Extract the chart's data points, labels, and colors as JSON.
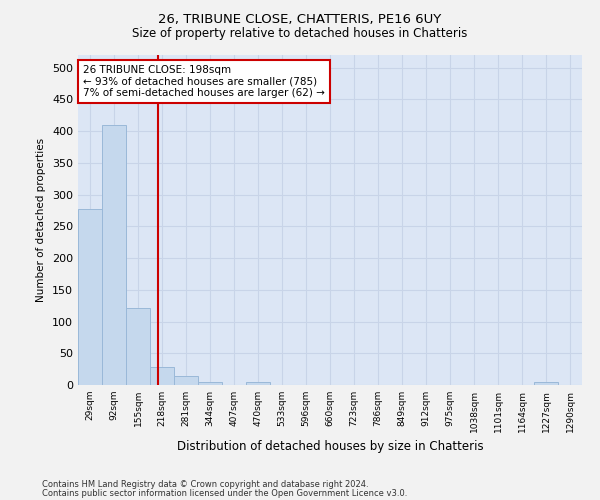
{
  "title1": "26, TRIBUNE CLOSE, CHATTERIS, PE16 6UY",
  "title2": "Size of property relative to detached houses in Chatteris",
  "xlabel": "Distribution of detached houses by size in Chatteris",
  "ylabel": "Number of detached properties",
  "categories": [
    "29sqm",
    "92sqm",
    "155sqm",
    "218sqm",
    "281sqm",
    "344sqm",
    "407sqm",
    "470sqm",
    "533sqm",
    "596sqm",
    "660sqm",
    "723sqm",
    "786sqm",
    "849sqm",
    "912sqm",
    "975sqm",
    "1038sqm",
    "1101sqm",
    "1164sqm",
    "1227sqm",
    "1290sqm"
  ],
  "values": [
    277,
    410,
    122,
    29,
    14,
    5,
    0,
    5,
    0,
    0,
    0,
    0,
    0,
    0,
    0,
    0,
    0,
    0,
    0,
    5,
    0
  ],
  "bar_color": "#c5d8ed",
  "bar_edge_color": "#9ab8d8",
  "vline_x": 2.85,
  "vline_color": "#cc0000",
  "annotation_text": "26 TRIBUNE CLOSE: 198sqm\n← 93% of detached houses are smaller (785)\n7% of semi-detached houses are larger (62) →",
  "annotation_box_color": "#cc0000",
  "annotation_bg": "#ffffff",
  "ylim": [
    0,
    520
  ],
  "yticks": [
    0,
    50,
    100,
    150,
    200,
    250,
    300,
    350,
    400,
    450,
    500
  ],
  "grid_color": "#c8d4e8",
  "bg_color": "#dce6f5",
  "fig_bg_color": "#f2f2f2",
  "footer1": "Contains HM Land Registry data © Crown copyright and database right 2024.",
  "footer2": "Contains public sector information licensed under the Open Government Licence v3.0."
}
